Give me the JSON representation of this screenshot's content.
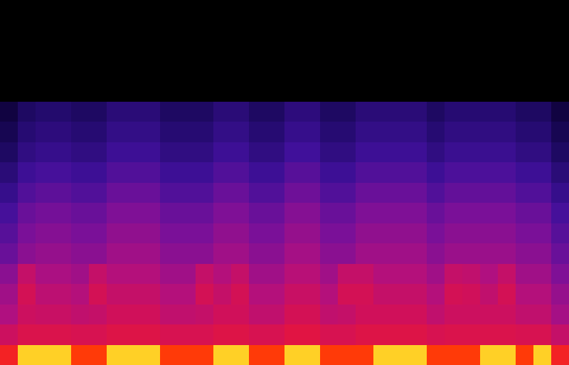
{
  "chart_data": {
    "type": "heatmap",
    "tick_labels": false,
    "zlim": [
      0,
      100
    ],
    "cells": [
      [
        75,
        92,
        92,
        92,
        82,
        82,
        92,
        92,
        92,
        82,
        82,
        82,
        92,
        92,
        82,
        82,
        92,
        92,
        82,
        82,
        82,
        92,
        92,
        92,
        82,
        82,
        82,
        92,
        92,
        82,
        92,
        75
      ],
      [
        62,
        66,
        66,
        66,
        65,
        65,
        67,
        67,
        67,
        65,
        65,
        65,
        67,
        67,
        65,
        65,
        68,
        68,
        65,
        65,
        67,
        67,
        67,
        67,
        65,
        66,
        66,
        66,
        66,
        65,
        65,
        60
      ],
      [
        55,
        62,
        61,
        61,
        59,
        60,
        63,
        63,
        63,
        59,
        59,
        60,
        63,
        63,
        59,
        59,
        64,
        64,
        59,
        60,
        63,
        63,
        63,
        63,
        59,
        62,
        62,
        62,
        62,
        59,
        59,
        53
      ],
      [
        52,
        64,
        58,
        58,
        56,
        64,
        60,
        60,
        60,
        56,
        56,
        64,
        60,
        64,
        56,
        56,
        61,
        61,
        56,
        64,
        64,
        60,
        60,
        60,
        56,
        64,
        63,
        59,
        64,
        56,
        56,
        50
      ],
      [
        48,
        60,
        54,
        54,
        52,
        60,
        56,
        56,
        56,
        52,
        52,
        60,
        56,
        60,
        52,
        52,
        57,
        57,
        52,
        60,
        60,
        56,
        56,
        56,
        52,
        60,
        59,
        55,
        60,
        52,
        52,
        46
      ],
      [
        42,
        48,
        50,
        50,
        48,
        48,
        52,
        52,
        52,
        48,
        48,
        48,
        52,
        52,
        48,
        48,
        53,
        53,
        48,
        48,
        52,
        52,
        52,
        52,
        48,
        51,
        51,
        51,
        51,
        48,
        48,
        42
      ],
      [
        39,
        45,
        47,
        47,
        45,
        45,
        49,
        49,
        49,
        45,
        45,
        45,
        49,
        49,
        45,
        45,
        50,
        50,
        45,
        45,
        49,
        49,
        49,
        49,
        45,
        48,
        48,
        48,
        48,
        45,
        45,
        39
      ],
      [
        36,
        42,
        44,
        44,
        42,
        42,
        46,
        46,
        46,
        42,
        42,
        42,
        46,
        46,
        42,
        42,
        47,
        47,
        42,
        42,
        46,
        46,
        46,
        46,
        42,
        45,
        45,
        45,
        45,
        42,
        42,
        36
      ],
      [
        32,
        38,
        40,
        40,
        38,
        38,
        42,
        42,
        42,
        38,
        38,
        38,
        42,
        42,
        38,
        38,
        43,
        43,
        38,
        38,
        42,
        42,
        42,
        42,
        38,
        41,
        41,
        41,
        41,
        38,
        38,
        32
      ],
      [
        28,
        34,
        36,
        36,
        34,
        34,
        38,
        38,
        38,
        34,
        34,
        34,
        38,
        38,
        34,
        34,
        39,
        39,
        34,
        34,
        38,
        38,
        38,
        38,
        34,
        37,
        37,
        37,
        37,
        34,
        34,
        28
      ],
      [
        24,
        30,
        32,
        32,
        30,
        30,
        34,
        34,
        34,
        30,
        30,
        30,
        34,
        34,
        30,
        30,
        35,
        35,
        30,
        30,
        34,
        34,
        34,
        34,
        30,
        33,
        33,
        33,
        33,
        30,
        30,
        24
      ],
      [
        21,
        27,
        29,
        29,
        27,
        27,
        31,
        31,
        31,
        27,
        27,
        27,
        31,
        31,
        27,
        27,
        32,
        32,
        27,
        27,
        31,
        31,
        31,
        31,
        27,
        30,
        30,
        30,
        30,
        27,
        27,
        21
      ],
      [
        18,
        24,
        26,
        26,
        24,
        24,
        28,
        28,
        28,
        24,
        24,
        24,
        28,
        28,
        24,
        24,
        29,
        29,
        24,
        24,
        28,
        28,
        28,
        28,
        24,
        27,
        27,
        27,
        27,
        24,
        24,
        18
      ],
      [
        0,
        0,
        0,
        0,
        0,
        0,
        0,
        0,
        0,
        0,
        0,
        0,
        0,
        0,
        0,
        0,
        0,
        0,
        0,
        0,
        0,
        0,
        0,
        0,
        0,
        0,
        0,
        0,
        0,
        0,
        0,
        0
      ],
      [
        0,
        0,
        0,
        0,
        0,
        0,
        0,
        0,
        0,
        0,
        0,
        0,
        0,
        0,
        0,
        0,
        0,
        0,
        0,
        0,
        0,
        0,
        0,
        0,
        0,
        0,
        0,
        0,
        0,
        0,
        0,
        0
      ],
      [
        0,
        0,
        0,
        0,
        0,
        0,
        0,
        0,
        0,
        0,
        0,
        0,
        0,
        0,
        0,
        0,
        0,
        0,
        0,
        0,
        0,
        0,
        0,
        0,
        0,
        0,
        0,
        0,
        0,
        0,
        0,
        0
      ],
      [
        0,
        0,
        0,
        0,
        0,
        0,
        0,
        0,
        0,
        0,
        0,
        0,
        0,
        0,
        0,
        0,
        0,
        0,
        0,
        0,
        0,
        0,
        0,
        0,
        0,
        0,
        0,
        0,
        0,
        0,
        0,
        0
      ],
      [
        0,
        0,
        0,
        0,
        0,
        0,
        0,
        0,
        0,
        0,
        0,
        0,
        0,
        0,
        0,
        0,
        0,
        0,
        0,
        0,
        0,
        0,
        0,
        0,
        0,
        0,
        0,
        0,
        0,
        0,
        0,
        0
      ]
    ]
  }
}
